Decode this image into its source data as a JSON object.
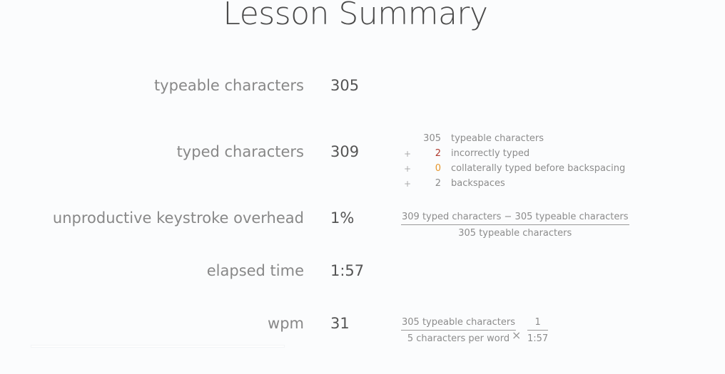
{
  "page_title": "Lesson Summary",
  "rows": [
    {
      "label": "typeable characters",
      "value": "305"
    },
    {
      "label": "typed characters",
      "value": "309"
    },
    {
      "label": "unproductive keystroke overhead",
      "value": "1%"
    },
    {
      "label": "elapsed time",
      "value": "1:57"
    },
    {
      "label": "wpm",
      "value": "31"
    }
  ],
  "breakdown": [
    {
      "op": "",
      "num": "305",
      "text": "typeable characters",
      "color": "#8c8c8c"
    },
    {
      "op": "+",
      "num": "2",
      "text": "incorrectly typed",
      "color": "#b03a2e"
    },
    {
      "op": "+",
      "num": "0",
      "text": "collaterally typed before backspacing",
      "color": "#e6962b"
    },
    {
      "op": "+",
      "num": "2",
      "text": "backspaces",
      "color": "#8c8c8c"
    }
  ],
  "overhead_formula": {
    "numerator": "309 typed characters − 305 typeable characters",
    "denominator": "305 typeable characters"
  },
  "wpm_formula": {
    "fraction1_numerator": "305 typeable characters",
    "fraction1_denominator": "5 characters per word",
    "operator": "×",
    "fraction2_numerator": "1",
    "fraction2_denominator": "1:57"
  }
}
